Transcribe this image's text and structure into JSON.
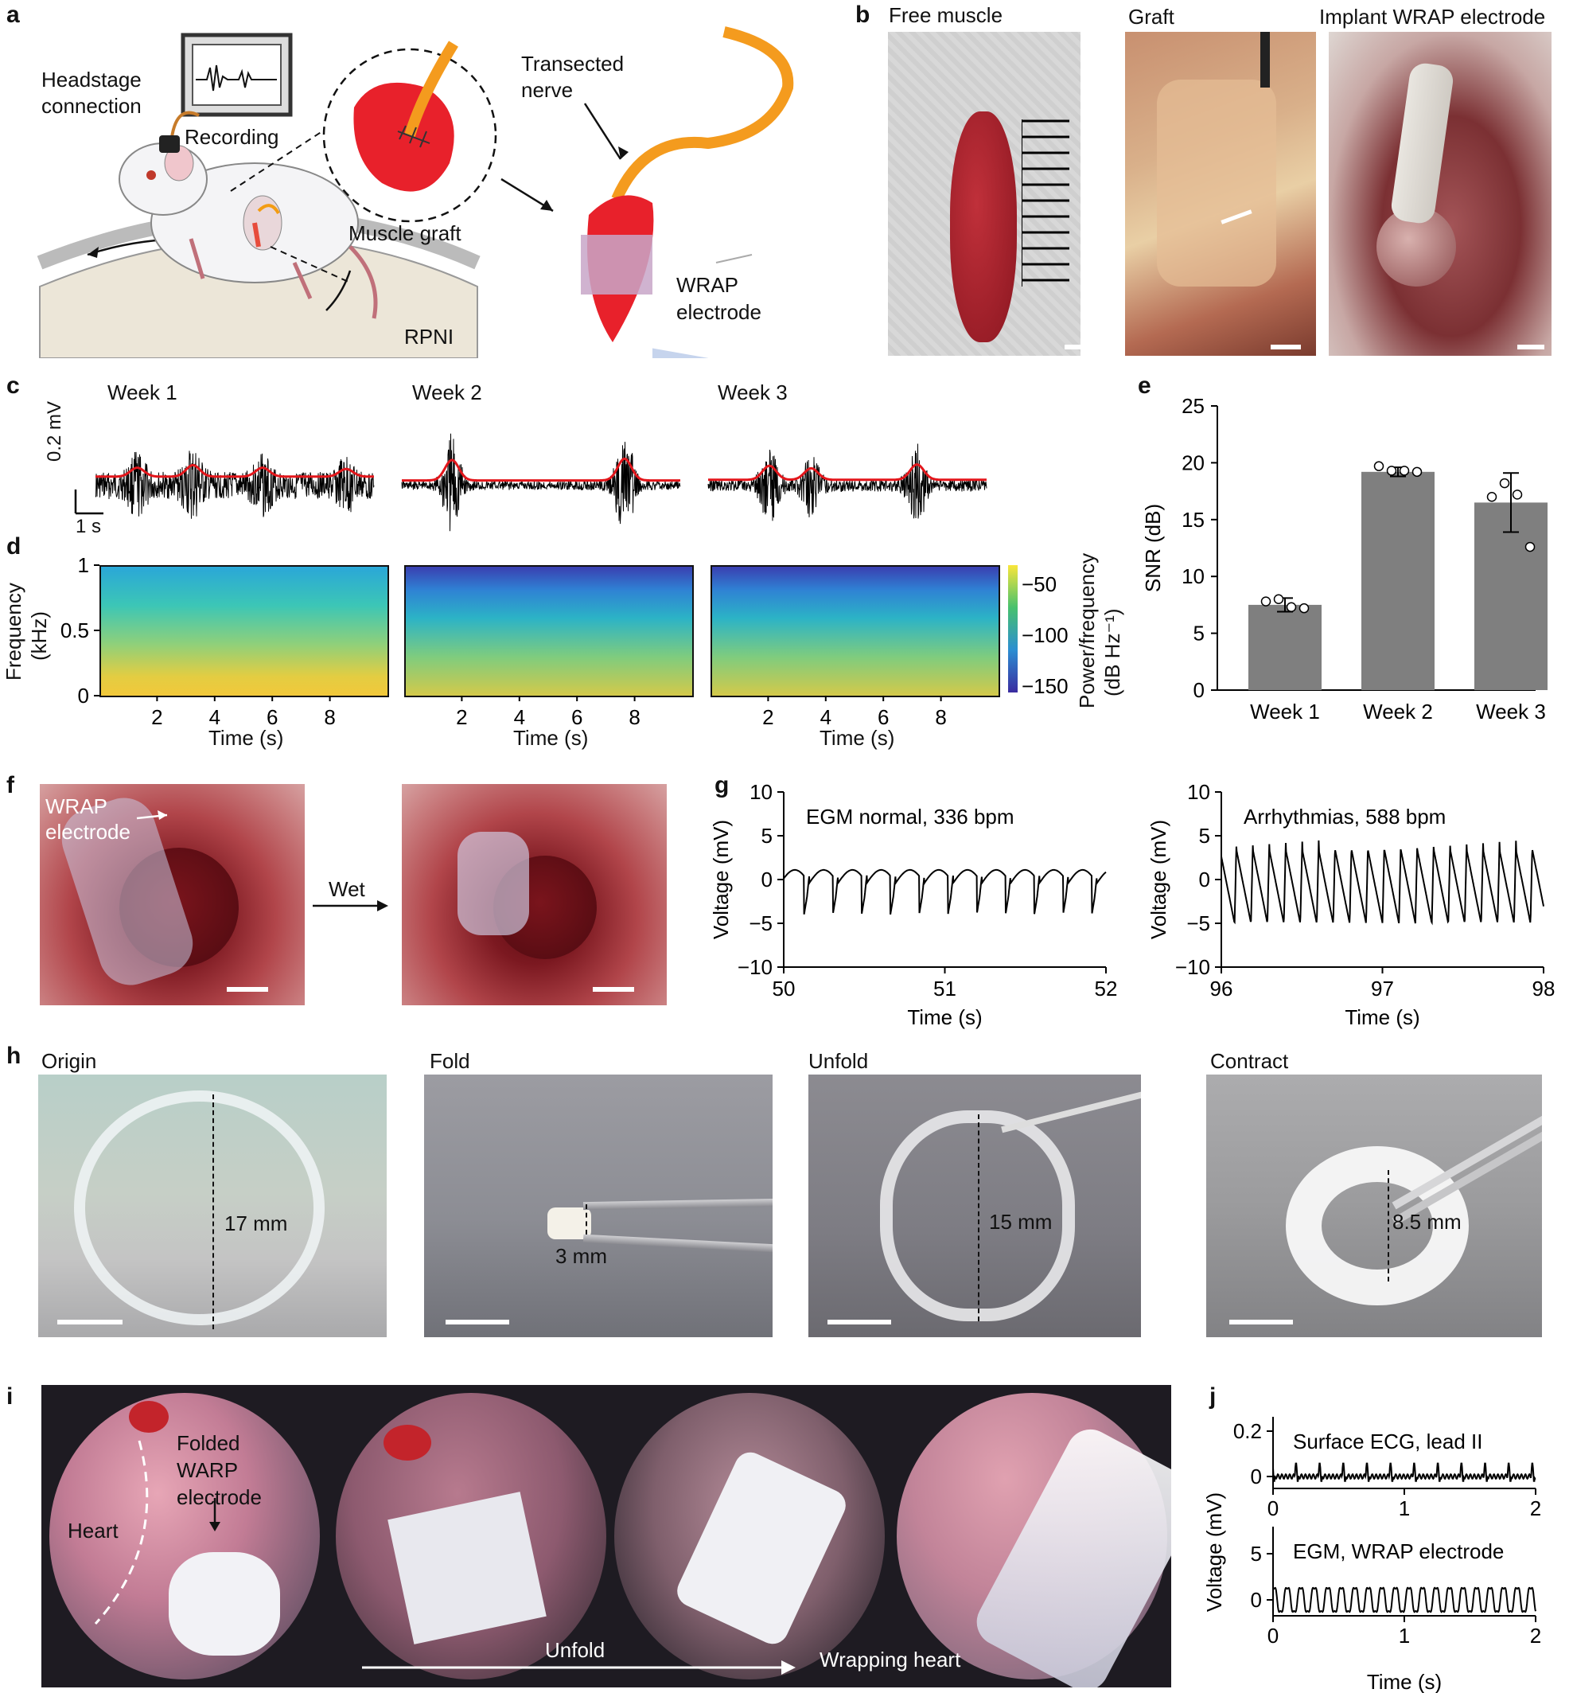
{
  "panel_labels": {
    "a": "a",
    "b": "b",
    "c": "c",
    "d": "d",
    "e": "e",
    "f": "f",
    "g": "g",
    "h": "h",
    "i": "i",
    "j": "j"
  },
  "panel_a": {
    "headstage_line1": "Headstage",
    "headstage_line2": "connection",
    "recording": "Recording",
    "muscle_graft": "Muscle graft",
    "transected_line1": "Transected",
    "transected_line2": "nerve",
    "wrap_line1": "WRAP",
    "wrap_line2": "electrode",
    "rpni": "RPNI"
  },
  "panel_b": {
    "titles": [
      "Free muscle",
      "Graft",
      "Implant WRAP electrode"
    ]
  },
  "panel_c": {
    "weeks": [
      "Week 1",
      "Week 2",
      "Week 3"
    ],
    "scale_v": "0.2 mV",
    "scale_t": "1 s"
  },
  "panel_d": {
    "ylabel_line1": "Frequency",
    "ylabel_line2": "(kHz)",
    "yticks": [
      "1",
      "0.5",
      "0"
    ],
    "xticks": [
      "2",
      "4",
      "6",
      "8"
    ],
    "xlabel": "Time (s)",
    "colorbar_ticks": [
      "−50",
      "−100",
      "−150"
    ],
    "colorbar_label_line1": "Power/frequency",
    "colorbar_label_line2": "(dB Hz⁻¹)"
  },
  "chart_data": [
    {
      "type": "bar",
      "panel": "e",
      "categories": [
        "Week 1",
        "Week 2",
        "Week 3"
      ],
      "values": [
        7.5,
        19.2,
        16.5
      ],
      "errors": [
        0.6,
        0.4,
        2.6
      ],
      "points": [
        [
          7.8,
          8.0,
          7.3,
          7.2
        ],
        [
          19.7,
          19.3,
          19.3,
          19.2
        ],
        [
          17.0,
          18.2,
          17.2,
          12.6
        ]
      ],
      "ylabel": "SNR (dB)",
      "ylim": [
        0,
        25
      ],
      "yticks": [
        0,
        5,
        10,
        15,
        20,
        25
      ],
      "color": "#7f7f7f"
    },
    {
      "type": "line",
      "panel": "g",
      "annotation": "EGM normal, 336 bpm",
      "xlabel": "Time (s)",
      "ylabel": "Voltage (mV)",
      "xlim": [
        50,
        52
      ],
      "ylim": [
        -10,
        10
      ],
      "xticks": [
        50,
        51,
        52
      ],
      "yticks": [
        10,
        5,
        0,
        -5,
        -10
      ],
      "beats_per_min": 336
    },
    {
      "type": "line",
      "panel": "g",
      "annotation": "Arrhythmias, 588 bpm",
      "xlabel": "Time (s)",
      "ylabel": "Voltage (mV)",
      "xlim": [
        96,
        98
      ],
      "ylim": [
        -10,
        10
      ],
      "xticks": [
        96,
        97,
        98
      ],
      "yticks": [
        10,
        5,
        0,
        -5,
        -10
      ],
      "beats_per_min": 588
    },
    {
      "type": "line",
      "panel": "j",
      "annotation": "Surface ECG, lead II",
      "xlim": [
        0,
        2
      ],
      "yticks": [
        0.2,
        0
      ],
      "xticks": [
        0,
        1,
        2
      ]
    },
    {
      "type": "line",
      "panel": "j",
      "annotation": "EGM, WRAP electrode",
      "xlim": [
        0,
        2
      ],
      "yticks": [
        5,
        0
      ],
      "xticks": [
        0,
        1,
        2
      ],
      "xlabel": "Time (s)",
      "ylabel": "Voltage (mV)"
    }
  ],
  "panel_f": {
    "wrap_line1": "WRAP",
    "wrap_line2": "electrode",
    "arrow_label": "Wet"
  },
  "panel_h": {
    "titles": [
      "Origin",
      "Fold",
      "Unfold",
      "Contract"
    ],
    "sizes": [
      "17 mm",
      "3 mm",
      "15 mm",
      "8.5 mm"
    ]
  },
  "panel_i": {
    "heart": "Heart",
    "folded_line1": "Folded",
    "folded_line2": "WARP",
    "folded_line3": "electrode",
    "unfold": "Unfold",
    "wrapping": "Wrapping heart"
  }
}
